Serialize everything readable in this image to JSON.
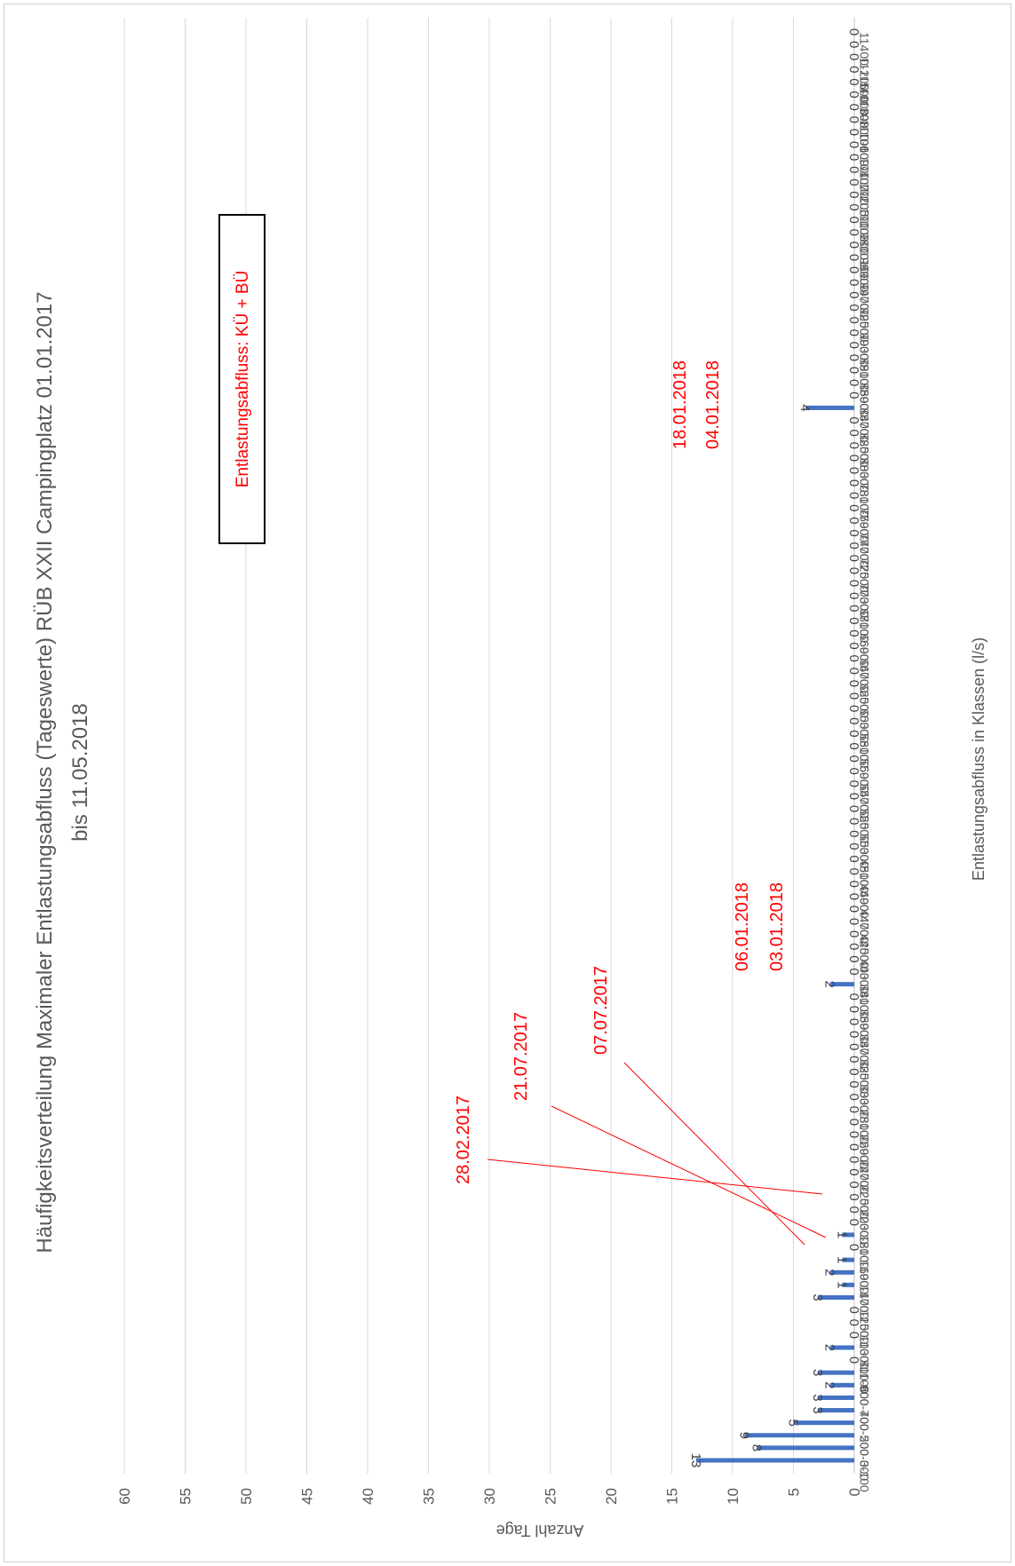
{
  "chart_data": {
    "type": "bar",
    "orientation": "rotated-90-clockwise",
    "title": "Häufigkeitsverteilung Maximaler Entlastungsabfluss (Tageswerte) RÜB XXII Campingplatz 01.01.2017",
    "subtitle": "bis 11.05.2018",
    "xlabel": "Entlastungsabfluss in Klassen (l/s)",
    "ylabel": "Anzahl Tage",
    "ylim": [
      0,
      60
    ],
    "yticks": [
      0,
      5,
      10,
      15,
      20,
      25,
      30,
      35,
      40,
      45,
      50,
      55,
      60
    ],
    "grid": true,
    "bar_color": "#4472c4",
    "annotation_color": "#ff0000",
    "legend_box": "Entlastungsabfluss: KÜ + BÜ",
    "categories": [
      "0-100",
      "100-200",
      "200-300",
      "300-400",
      "400-500",
      "500-600",
      "600-700",
      "700-800",
      "800-900",
      "900-1000",
      "1000-1100",
      "1100-1200",
      "1200-1300",
      "1300-1400",
      "1400-1500",
      "1500-1600",
      "1600-1700",
      "1700-1800",
      "1800-1900",
      "1900-2000",
      "2000-2100",
      "2100-2200",
      "2200-2300",
      "2300-2400",
      "2400-2500",
      "2500-2600",
      "2600-2700",
      "2700-2800",
      "2800-2900",
      "2900-3000",
      "3000-3100",
      "3100-3200",
      "3200-3300",
      "3300-3400",
      "3400-3500",
      "3500-3600",
      "3600-3700",
      "3700-3800",
      "3800-3900",
      "3900-4000",
      "4000-4100",
      "4100-4200",
      "4200-4300",
      "4300-4400",
      "4400-4500",
      "4500-4600",
      "4600-4700",
      "4700-4800",
      "4800-4900",
      "4900-5000",
      "5000-5100",
      "5100-5200",
      "5200-5300",
      "5300-5400",
      "5400-5500",
      "5500-5600",
      "5600-5700",
      "5700-5800",
      "5800-5900",
      "5900-6000",
      "6000-6100",
      "6100-6200",
      "6200-6300",
      "6300-6400",
      "6400-6500",
      "6500-6600",
      "6600-6700",
      "6700-6800",
      "6800-6900",
      "6900-7000",
      "7000-7100",
      "7100-7200",
      "7200-7300",
      "7300-7400",
      "7400-7500",
      "7500-7600",
      "7600-7700",
      "7700-7800",
      "7800-7900",
      "7900-8000",
      "8000-8100",
      "8100-8200",
      "8200-8300",
      "8300-8400",
      "8400-8500",
      "8500-8600",
      "8600-8700",
      "8700-8800",
      "8800-8900",
      "8900-9000",
      "9000-9100",
      "9100-9200",
      "9200-9300",
      "9300-9400",
      "9400-9500",
      "9500-9600",
      "9600-9700",
      "9700-9800",
      "9800-9900",
      "9900-10000",
      "10000-10100",
      "10100-10200",
      "10200-10300",
      "10300-10400",
      "10400-10500",
      "10500-10600",
      "10600-10700",
      "10700-10800",
      "10800-10900",
      "10900-11000",
      "11000-11100",
      "11100-11200",
      "11200-11300",
      "11300-11400",
      "11400-11500"
    ],
    "tick_labels": [
      "0-100",
      "200-300",
      "400-500",
      "600-700",
      "800-900",
      "1000-1100",
      "1200-1300",
      "1400-1500",
      "1600-1700",
      "1800-1900",
      "2000-2100",
      "2200-2300",
      "2400-2500",
      "2600-2700",
      "2800-2900",
      "3000-3100",
      "3200-3300",
      "3400-3500",
      "3600-3700",
      "3800-3900",
      "4000-4100",
      "4200-4300",
      "4400-4500",
      "4600-4700",
      "4800-4900",
      "5000-5100",
      "5200-5300",
      "5400-5500",
      "5600-5700",
      "5800-5900",
      "6000-6100",
      "6200-6300",
      "6400-6500",
      "6600-6700",
      "6800-6900",
      "7000-7100",
      "7200-7300",
      "7400-7500",
      "7600-7700",
      "7800-7900",
      "8000-8100",
      "8200-8300",
      "8400-8500",
      "8600-8700",
      "8800-8900",
      "9000-9100",
      "9200-9300",
      "9400-9500",
      "9600-9700",
      "9800-9900",
      "10000-10100",
      "10200-10300",
      "10400-10500",
      "10600-10700",
      "10800-10900",
      "11000-11100",
      "11200-11300",
      "11400-11500"
    ],
    "values": [
      13,
      8,
      9,
      5,
      3,
      3,
      2,
      3,
      0,
      2,
      0,
      0,
      0,
      3,
      1,
      2,
      1,
      0,
      1,
      0,
      0,
      0,
      0,
      0,
      0,
      0,
      0,
      0,
      0,
      0,
      0,
      0,
      0,
      0,
      0,
      0,
      0,
      0,
      2,
      0,
      0,
      0,
      0,
      0,
      0,
      0,
      0,
      0,
      0,
      0,
      0,
      0,
      0,
      0,
      0,
      0,
      0,
      0,
      0,
      0,
      0,
      0,
      0,
      0,
      0,
      0,
      0,
      0,
      0,
      0,
      0,
      0,
      0,
      0,
      0,
      0,
      0,
      0,
      0,
      0,
      0,
      0,
      0,
      0,
      4,
      0,
      0,
      0,
      0,
      0,
      0,
      0,
      0,
      0,
      0,
      0,
      0,
      0,
      0,
      0,
      0,
      0,
      0,
      0,
      0,
      0,
      0,
      0,
      0,
      0,
      0,
      0,
      0,
      0,
      0
    ],
    "annotations": [
      {
        "text": "28.02.2017",
        "category_index": 13
      },
      {
        "text": "21.07.2017",
        "category_index": 14
      },
      {
        "text": "07.07.2017",
        "category_index": 16
      },
      {
        "text": "06.01.2018",
        "category_index": 38
      },
      {
        "text": "03.01.2018",
        "category_index": 38
      },
      {
        "text": "18.01.2018",
        "category_index": 84
      },
      {
        "text": "04.01.2018",
        "category_index": 84
      }
    ]
  }
}
